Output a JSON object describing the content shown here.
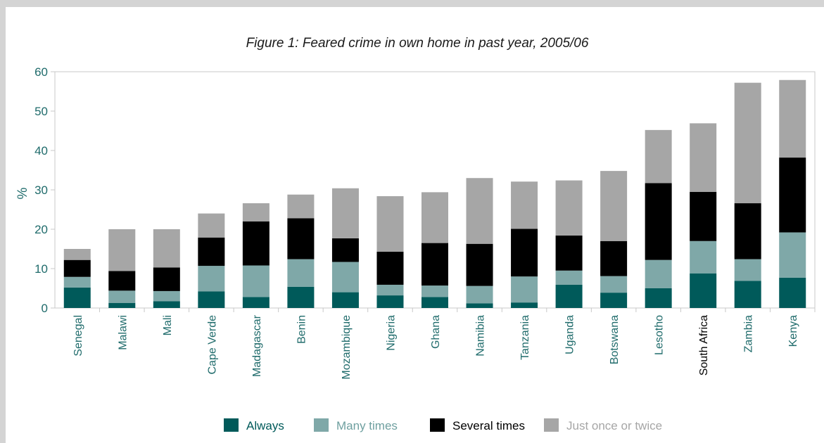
{
  "chart_data": {
    "type": "bar",
    "stacked": true,
    "title": "Figure 1: Feared crime in own home in past year, 2005/06",
    "xlabel": "",
    "ylabel": "%",
    "ylim": [
      0,
      60
    ],
    "yticks": [
      0,
      10,
      20,
      30,
      40,
      50,
      60
    ],
    "grid": false,
    "legend_position": "bottom",
    "categories": [
      "Senegal",
      "Malawi",
      "Mali",
      "Cape Verde",
      "Madagascar",
      "Benin",
      "Mozambique",
      "Nigeria",
      "Ghana",
      "Namibia",
      "Tanzania",
      "Uganda",
      "Botswana",
      "Lesotho",
      "South Africa",
      "Zambia",
      "Kenya"
    ],
    "category_colors": [
      "#1f6b6b",
      "#1f6b6b",
      "#1f6b6b",
      "#1f6b6b",
      "#1f6b6b",
      "#1f6b6b",
      "#1f6b6b",
      "#1f6b6b",
      "#1f6b6b",
      "#1f6b6b",
      "#1f6b6b",
      "#1f6b6b",
      "#1f6b6b",
      "#1f6b6b",
      "#000000",
      "#1f6b6b",
      "#1f6b6b"
    ],
    "series": [
      {
        "name": "Always",
        "color": "#005a5a",
        "label_color": "#005a5a",
        "values": [
          5.2,
          1.3,
          1.7,
          4.2,
          2.8,
          5.4,
          4.0,
          3.2,
          2.8,
          1.2,
          1.4,
          5.9,
          3.9,
          5.0,
          8.8,
          6.9,
          7.7
        ]
      },
      {
        "name": "Many times",
        "color": "#7fa8a8",
        "label_color": "#6fa0a0",
        "values": [
          2.7,
          3.1,
          2.6,
          6.5,
          8.0,
          7.0,
          7.7,
          2.7,
          2.9,
          4.4,
          6.6,
          3.6,
          4.2,
          7.2,
          8.2,
          5.5,
          11.5
        ]
      },
      {
        "name": "Several times",
        "color": "#000000",
        "label_color": "#000000",
        "values": [
          4.3,
          5.0,
          6.0,
          7.2,
          11.2,
          10.4,
          6.0,
          8.4,
          10.8,
          10.7,
          12.1,
          8.9,
          8.9,
          19.5,
          12.5,
          14.2,
          19.0
        ]
      },
      {
        "name": "Just once or twice",
        "color": "#a6a6a6",
        "label_color": "#a6a6a6",
        "values": [
          2.8,
          10.6,
          9.7,
          6.1,
          4.6,
          6.0,
          12.7,
          14.1,
          12.9,
          16.7,
          12.0,
          14.0,
          17.8,
          13.5,
          17.4,
          30.6,
          19.7
        ]
      }
    ]
  }
}
